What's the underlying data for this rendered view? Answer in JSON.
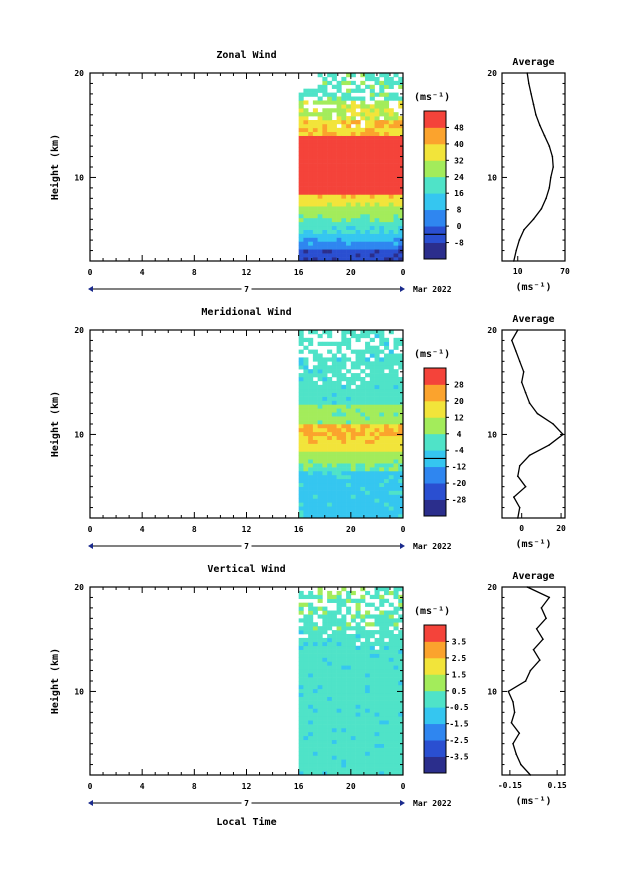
{
  "chart_data": [
    {
      "type": "heatmap",
      "title": "Zonal Wind",
      "ylabel": "Height (km)",
      "ylim": [
        2,
        20
      ],
      "xlim": [
        0,
        24
      ],
      "x_ticks": [
        "0",
        "4",
        "8",
        "12",
        "16",
        "20",
        "0"
      ],
      "y_ticks": [
        "20",
        "10"
      ],
      "date_marker": "7",
      "date_label": "Mar 2022",
      "data_start_hour": 16,
      "colorbar": {
        "unit": "(ms⁻¹)",
        "levels": [
          -8,
          0,
          8,
          16,
          24,
          32,
          40,
          48
        ],
        "labels": [
          "48",
          "40",
          "32",
          "24",
          "16",
          "8",
          "0",
          "-8"
        ],
        "line_at": 0
      },
      "profile": {
        "title": "Average",
        "xlim": [
          -10,
          70
        ],
        "x_tick_labels": [
          "10",
          "70"
        ],
        "xlabel": "(ms⁻¹)",
        "heights": [
          2,
          3,
          4,
          5,
          6,
          7,
          8,
          9,
          10,
          11,
          12,
          13,
          14,
          15,
          16,
          17,
          18,
          19,
          20
        ],
        "values": [
          5,
          8,
          12,
          18,
          30,
          40,
          46,
          50,
          52,
          55,
          54,
          50,
          44,
          38,
          33,
          30,
          27,
          24,
          22
        ]
      }
    },
    {
      "type": "heatmap",
      "title": "Meridional Wind",
      "ylabel": "Height (km)",
      "ylim": [
        2,
        20
      ],
      "xlim": [
        0,
        24
      ],
      "x_ticks": [
        "0",
        "4",
        "8",
        "12",
        "16",
        "20",
        "0"
      ],
      "y_ticks": [
        "20",
        "10"
      ],
      "date_marker": "7",
      "date_label": "Mar 2022",
      "data_start_hour": 16,
      "colorbar": {
        "unit": "(ms⁻¹)",
        "levels": [
          -28,
          -20,
          -12,
          -4,
          4,
          12,
          20,
          28
        ],
        "labels": [
          "28",
          "20",
          "12",
          "4",
          "-4",
          "-12",
          "-20",
          "-28"
        ],
        "line_at": 0
      },
      "profile": {
        "title": "Average",
        "xlim": [
          -10,
          22
        ],
        "x_tick_labels": [
          "0",
          "20"
        ],
        "xlabel": "(ms⁻¹)",
        "heights": [
          2,
          3,
          4,
          5,
          6,
          7,
          8,
          9,
          10,
          11,
          12,
          13,
          14,
          15,
          16,
          17,
          18,
          19,
          20
        ],
        "values": [
          -2,
          -1,
          -4,
          2,
          -2,
          -1,
          4,
          14,
          21,
          16,
          8,
          4,
          2,
          0,
          1,
          -1,
          -3,
          -5,
          -2
        ]
      }
    },
    {
      "type": "heatmap",
      "title": "Vertical Wind",
      "ylabel": "Height (km)",
      "xlabel": "Local Time",
      "ylim": [
        2,
        20
      ],
      "xlim": [
        0,
        24
      ],
      "x_ticks": [
        "0",
        "4",
        "8",
        "12",
        "16",
        "20",
        "0"
      ],
      "y_ticks": [
        "20",
        "10"
      ],
      "date_marker": "7",
      "date_label": "Mar 2022",
      "data_start_hour": 16,
      "colorbar": {
        "unit": "(ms⁻¹)",
        "levels": [
          -3.5,
          -2.5,
          -1.5,
          -0.5,
          0.5,
          1.5,
          2.5,
          3.5
        ],
        "labels": [
          "3.5",
          "2.5",
          "1.5",
          "0.5",
          "-0.5",
          "-1.5",
          "-2.5",
          "-3.5"
        ],
        "line_at": null
      },
      "profile": {
        "title": "Average",
        "xlim": [
          -0.2,
          0.2
        ],
        "x_tick_labels": [
          "-0.15",
          "0.15"
        ],
        "xlabel": "(ms⁻¹)",
        "heights": [
          2,
          3,
          4,
          5,
          6,
          7,
          8,
          9,
          10,
          11,
          12,
          13,
          14,
          15,
          16,
          17,
          18,
          19,
          20
        ],
        "values": [
          -0.02,
          -0.08,
          -0.11,
          -0.13,
          -0.09,
          -0.14,
          -0.12,
          -0.13,
          -0.16,
          -0.05,
          -0.02,
          0.04,
          0.0,
          0.06,
          0.02,
          0.08,
          0.05,
          0.1,
          -0.04
        ]
      }
    }
  ]
}
